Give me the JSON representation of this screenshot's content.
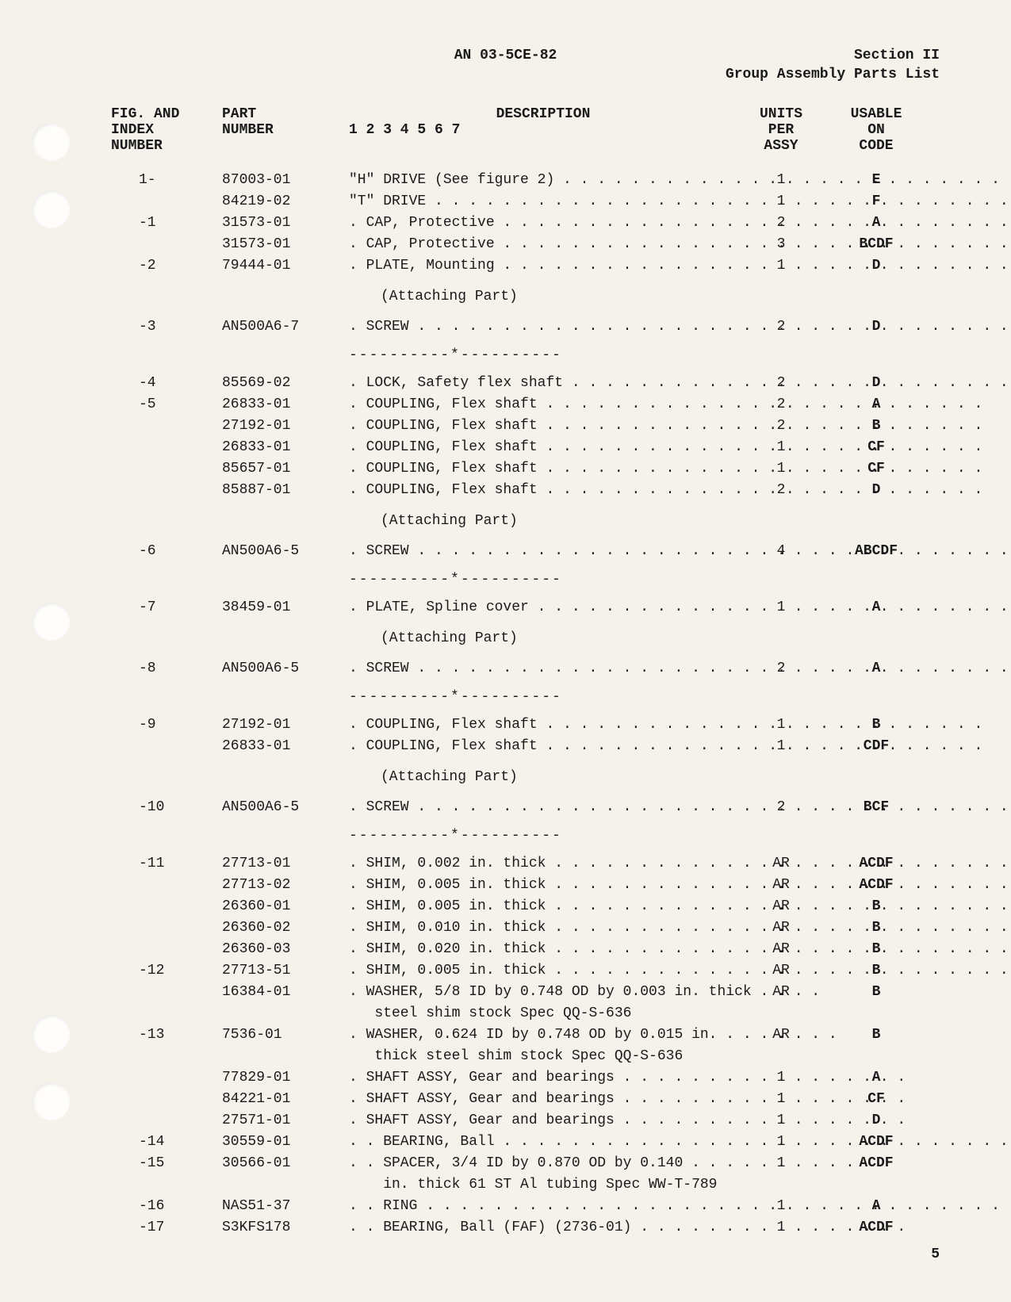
{
  "header": {
    "doc_number": "AN 03-5CE-82",
    "section": "Section II",
    "subtitle": "Group Assembly Parts List"
  },
  "columns": {
    "col1_l1": "FIG. AND",
    "col1_l2": "INDEX",
    "col1_l3": "NUMBER",
    "col2_l1": "PART",
    "col2_l2": "NUMBER",
    "col3_l1": "DESCRIPTION",
    "col3_l2": "1 2 3 4 5 6 7",
    "col4_l1": "UNITS",
    "col4_l2": "PER",
    "col4_l3": "ASSY",
    "col5_l1": "USABLE",
    "col5_l2": "ON",
    "col5_l3": "CODE"
  },
  "attaching": "(Attaching Part)",
  "sep": "----------*----------",
  "rows": [
    {
      "idx": "1-",
      "part": "87003-01",
      "desc": "\"H\" DRIVE (See figure 2) . . . . . . . . . . . . . . . . . . . . . . . . . .",
      "units": "1",
      "code": "E"
    },
    {
      "idx": "",
      "part": "84219-02",
      "desc": "\"T\" DRIVE . . . . . . . . . . . . . . . . . . . . . . . . . . . . . . . . . . . . . . . . . .",
      "units": "1",
      "code": "F"
    },
    {
      "idx": "-1",
      "part": "31573-01",
      "desc": ". CAP, Protective . . . . . . . . . . . . . . . . . . . . . . . . . . . . . . . . .",
      "units": "2",
      "code": "A"
    },
    {
      "idx": "",
      "part": "31573-01",
      "desc": ". CAP, Protective . . . . . . . . . . . . . . . . . . . . . . . . . . . . . . . . .",
      "units": "3",
      "code": "BCDF"
    },
    {
      "idx": "-2",
      "part": "79444-01",
      "desc": ". PLATE, Mounting . . . . . . . . . . . . . . . . . . . . . . . . . . . . . . .",
      "units": "1",
      "code": "D"
    }
  ],
  "rows2": [
    {
      "idx": "-3",
      "part": "AN500A6-7",
      "desc": ". SCREW . . . . . . . . . . . . . . . . . . . . . . . . . . . . . . . . . . . . . . . . .",
      "units": "2",
      "code": "D"
    }
  ],
  "rows3": [
    {
      "idx": "-4",
      "part": "85569-02",
      "desc": ". LOCK, Safety flex shaft . . . . . . . . . . . . . . . . . . . . . . . . . .",
      "units": "2",
      "code": "D"
    },
    {
      "idx": "-5",
      "part": "26833-01",
      "desc": ". COUPLING, Flex shaft . . . . . . . . . . . . . . . . . . . . . . . . . .",
      "units": "2",
      "code": "A"
    },
    {
      "idx": "",
      "part": "27192-01",
      "desc": ". COUPLING, Flex shaft . . . . . . . . . . . . . . . . . . . . . . . . . .",
      "units": "2",
      "code": "B"
    },
    {
      "idx": "",
      "part": "26833-01",
      "desc": ". COUPLING, Flex shaft . . . . . . . . . . . . . . . . . . . . . . . . . .",
      "units": "1",
      "code": "CF"
    },
    {
      "idx": "",
      "part": "85657-01",
      "desc": ". COUPLING, Flex shaft . . . . . . . . . . . . . . . . . . . . . . . . . .",
      "units": "1",
      "code": "CF"
    },
    {
      "idx": "",
      "part": "85887-01",
      "desc": ". COUPLING, Flex shaft . . . . . . . . . . . . . . . . . . . . . . . . . .",
      "units": "2",
      "code": "D"
    }
  ],
  "rows4": [
    {
      "idx": "-6",
      "part": "AN500A6-5",
      "desc": ". SCREW . . . . . . . . . . . . . . . . . . . . . . . . . . . . . . . . . . . . . . . . .",
      "units": "4",
      "code": "ABCDF"
    }
  ],
  "rows5": [
    {
      "idx": "-7",
      "part": "38459-01",
      "desc": ". PLATE, Spline cover . . . . . . . . . . . . . . . . . . . . . . . . . . . .",
      "units": "1",
      "code": "A"
    }
  ],
  "rows6": [
    {
      "idx": "-8",
      "part": "AN500A6-5",
      "desc": ". SCREW . . . . . . . . . . . . . . . . . . . . . . . . . . . . . . . . . . . . . . . . .",
      "units": "2",
      "code": "A"
    }
  ],
  "rows7": [
    {
      "idx": "-9",
      "part": "27192-01",
      "desc": ". COUPLING, Flex shaft . . . . . . . . . . . . . . . . . . . . . . . . . .",
      "units": "1",
      "code": "B"
    },
    {
      "idx": "",
      "part": "26833-01",
      "desc": ". COUPLING, Flex shaft . . . . . . . . . . . . . . . . . . . . . . . . . .",
      "units": "1",
      "code": "CDF"
    }
  ],
  "rows8": [
    {
      "idx": "-10",
      "part": "AN500A6-5",
      "desc": ". SCREW . . . . . . . . . . . . . . . . . . . . . . . . . . . . . . . . . . . . . . . . .",
      "units": "2",
      "code": "BCF"
    }
  ],
  "rows9": [
    {
      "idx": "-11",
      "part": "27713-01",
      "desc": ". SHIM, 0.002 in. thick . . . . . . . . . . . . . . . . . . . . . . . . . . .",
      "units": "AR",
      "code": "ACDF"
    },
    {
      "idx": "",
      "part": "27713-02",
      "desc": ". SHIM, 0.005 in. thick . . . . . . . . . . . . . . . . . . . . . . . . . . .",
      "units": "AR",
      "code": "ACDF"
    },
    {
      "idx": "",
      "part": "26360-01",
      "desc": ". SHIM, 0.005 in. thick . . . . . . . . . . . . . . . . . . . . . . . . . . .",
      "units": "AR",
      "code": "B"
    },
    {
      "idx": "",
      "part": "26360-02",
      "desc": ". SHIM, 0.010 in. thick . . . . . . . . . . . . . . . . . . . . . . . . . . .",
      "units": "AR",
      "code": "B"
    },
    {
      "idx": "",
      "part": "26360-03",
      "desc": ". SHIM, 0.020 in. thick . . . . . . . . . . . . . . . . . . . . . . . . . . .",
      "units": "AR",
      "code": "B"
    },
    {
      "idx": "-12",
      "part": "27713-51",
      "desc": ". SHIM, 0.005 in. thick . . . . . . . . . . . . . . . . . . . . . . . . . . .",
      "units": "AR",
      "code": "B"
    },
    {
      "idx": "",
      "part": "16384-01",
      "desc": ". WASHER, 5/8 ID by 0.748 OD by 0.003 in. thick . . . .",
      "units": "AR",
      "code": "B"
    },
    {
      "idx": "",
      "part": "",
      "desc": "   steel shim stock Spec QQ-S-636",
      "units": "",
      "code": ""
    },
    {
      "idx": "-13",
      "part": "7536-01",
      "desc": ". WASHER, 0.624 ID by 0.748 OD by 0.015 in. . . . . . . .",
      "units": "AR",
      "code": "B"
    },
    {
      "idx": "",
      "part": "",
      "desc": "   thick steel shim stock Spec QQ-S-636",
      "units": "",
      "code": ""
    },
    {
      "idx": "",
      "part": "77829-01",
      "desc": ". SHAFT ASSY, Gear and bearings . . . . . . . . . . . . . . . . .",
      "units": "1",
      "code": "A"
    },
    {
      "idx": "",
      "part": "84221-01",
      "desc": ". SHAFT ASSY, Gear and bearings . . . . . . . . . . . . . . . . .",
      "units": "1",
      "code": "CF"
    },
    {
      "idx": "",
      "part": "27571-01",
      "desc": ". SHAFT ASSY, Gear and bearings . . . . . . . . . . . . . . . . .",
      "units": "1",
      "code": "D"
    },
    {
      "idx": "-14",
      "part": "30559-01",
      "desc": ". . BEARING, Ball . . . . . . . . . . . . . . . . . . . . . . . . . . . . . . .",
      "units": "1",
      "code": "ACDF"
    },
    {
      "idx": "-15",
      "part": "30566-01",
      "desc": ". . SPACER, 3/4 ID by 0.870 OD by 0.140 . . . . . . . . . .",
      "units": "1",
      "code": "ACDF"
    },
    {
      "idx": "",
      "part": "",
      "desc": "    in. thick 61 ST Al tubing Spec WW-T-789",
      "units": "",
      "code": ""
    },
    {
      "idx": "-16",
      "part": "NAS51-37",
      "desc": ". . RING . . . . . . . . . . . . . . . . . . . . . . . . . . . . . . . . . . . . . . . .",
      "units": "1",
      "code": "A"
    },
    {
      "idx": "-17",
      "part": "S3KFS178",
      "desc": ". . BEARING, Ball (FAF) (2736-01) . . . . . . . . . . . . . . . .",
      "units": "1",
      "code": "ACDF"
    }
  ],
  "page": "5"
}
